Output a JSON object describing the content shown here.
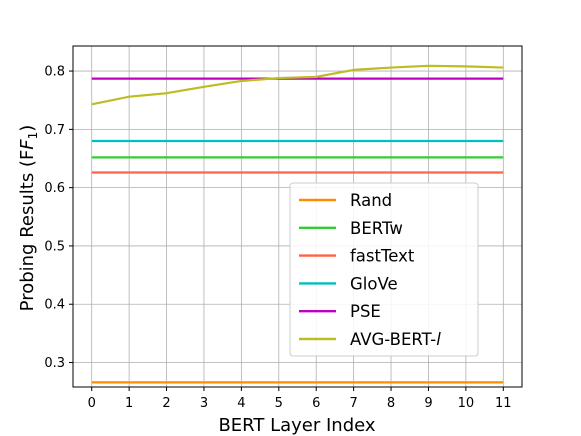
{
  "chart_data": {
    "type": "line",
    "xlabel": "BERT Layer Index",
    "ylabel": "Probing Results (F",
    "ylabel_sub": "1",
    "ylabel_end": ")",
    "x": [
      0,
      1,
      2,
      3,
      4,
      5,
      6,
      7,
      8,
      9,
      10,
      11
    ],
    "x_ticks": [
      "0",
      "1",
      "2",
      "3",
      "4",
      "5",
      "6",
      "7",
      "8",
      "9",
      "10",
      "11"
    ],
    "y_ticks": [
      "0.3",
      "0.4",
      "0.5",
      "0.6",
      "0.7",
      "0.8"
    ],
    "xlim": [
      -0.5,
      11.5
    ],
    "ylim": [
      0.258,
      0.843
    ],
    "grid": true,
    "legend_position": "lower-right",
    "series": [
      {
        "name": "Rand",
        "color": "#ff8c00",
        "values": [
          0.266,
          0.266,
          0.266,
          0.266,
          0.266,
          0.266,
          0.266,
          0.266,
          0.266,
          0.266,
          0.266,
          0.266
        ]
      },
      {
        "name": "BERTw",
        "color": "#32cd32",
        "values": [
          0.652,
          0.652,
          0.652,
          0.652,
          0.652,
          0.652,
          0.652,
          0.652,
          0.652,
          0.652,
          0.652,
          0.652
        ]
      },
      {
        "name": "fastText",
        "color": "#ff6347",
        "values": [
          0.626,
          0.626,
          0.626,
          0.626,
          0.626,
          0.626,
          0.626,
          0.626,
          0.626,
          0.626,
          0.626,
          0.626
        ]
      },
      {
        "name": "GloVe",
        "color": "#00bfc4",
        "values": [
          0.68,
          0.68,
          0.68,
          0.68,
          0.68,
          0.68,
          0.68,
          0.68,
          0.68,
          0.68,
          0.68,
          0.68
        ]
      },
      {
        "name": "PSE",
        "color": "#c000c0",
        "values": [
          0.787,
          0.787,
          0.787,
          0.787,
          0.787,
          0.787,
          0.787,
          0.787,
          0.787,
          0.787,
          0.787,
          0.787
        ]
      },
      {
        "name": "AVG-BERT-",
        "name_italic": "l",
        "color": "#bcbd22",
        "values": [
          0.743,
          0.756,
          0.762,
          0.773,
          0.783,
          0.788,
          0.79,
          0.802,
          0.806,
          0.809,
          0.808,
          0.806
        ]
      }
    ]
  }
}
